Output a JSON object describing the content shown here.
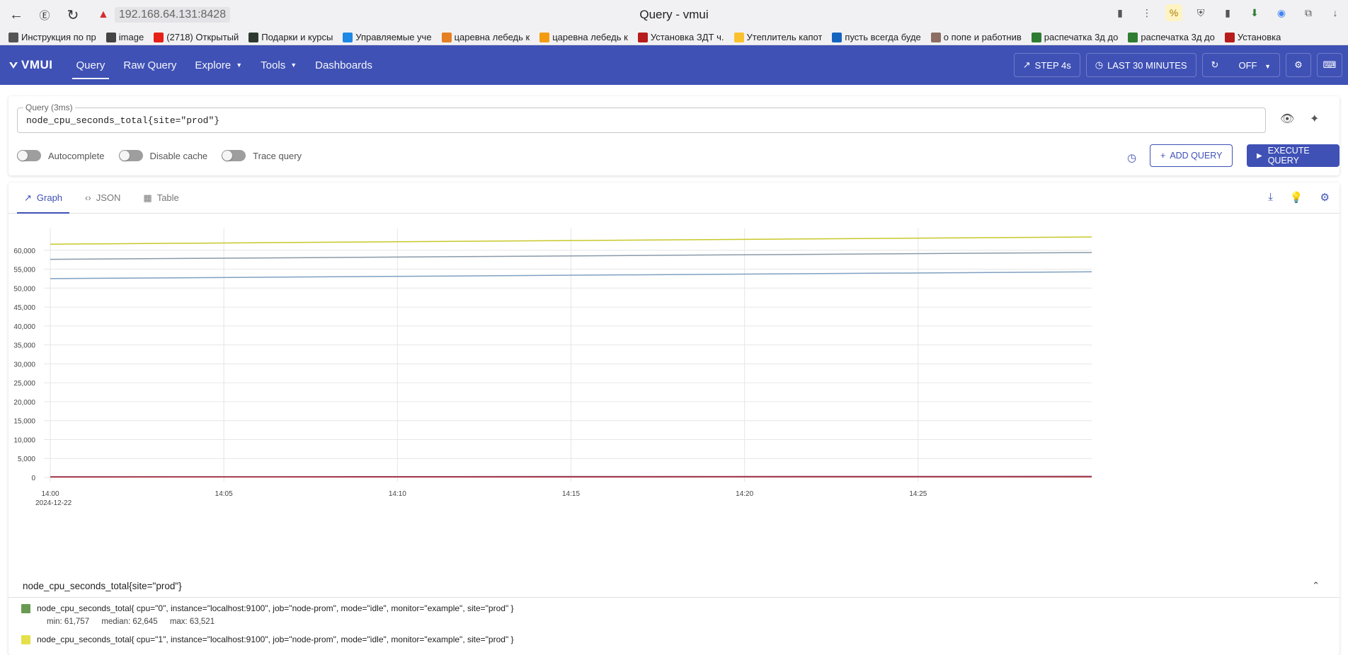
{
  "browser": {
    "url": "192.168.64.131:8428",
    "title": "Query - vmui",
    "bookmarks": [
      {
        "label": "Инструкция по пр",
        "color": "#555555"
      },
      {
        "label": "image",
        "color": "#444444"
      },
      {
        "label": "(2718) Открытый",
        "color": "#e62117"
      },
      {
        "label": "Подарки и курсы",
        "color": "#2e3a2f"
      },
      {
        "label": "Управляемые уче",
        "color": "#1e88e5"
      },
      {
        "label": "царевна лебедь к",
        "color": "#e67e22"
      },
      {
        "label": "царевна лебедь к",
        "color": "#f39c12"
      },
      {
        "label": "Установка ЗДТ ч.",
        "color": "#b71c1c"
      },
      {
        "label": "Утеплитель капот",
        "color": "#fbc02d"
      },
      {
        "label": "пусть всегда буде",
        "color": "#1565c0"
      },
      {
        "label": "о попе и работнив",
        "color": "#8d6e63"
      },
      {
        "label": "распечатка 3д до",
        "color": "#2e7d32"
      },
      {
        "label": "распечатка 3д до",
        "color": "#2e7d32"
      },
      {
        "label": "Установка",
        "color": "#b71c1c"
      }
    ]
  },
  "header": {
    "logo": "VMUI",
    "menu": [
      {
        "label": "Query",
        "active": true,
        "dropdown": false
      },
      {
        "label": "Raw Query",
        "active": false,
        "dropdown": false
      },
      {
        "label": "Explore",
        "active": false,
        "dropdown": true
      },
      {
        "label": "Tools",
        "active": false,
        "dropdown": true
      },
      {
        "label": "Dashboards",
        "active": false,
        "dropdown": false
      }
    ],
    "step_label": "STEP 4s",
    "time_range_label": "LAST 30 MINUTES",
    "refresh_label": "OFF"
  },
  "query": {
    "label": "Query (3ms)",
    "value": "node_cpu_seconds_total{site=\"prod\"}",
    "toggles": [
      "Autocomplete",
      "Disable cache",
      "Trace query"
    ],
    "add_label": "ADD QUERY",
    "execute_label": "EXECUTE QUERY"
  },
  "tabs": [
    {
      "label": "Graph",
      "icon": "chart-line-icon",
      "active": true
    },
    {
      "label": "JSON",
      "icon": "code-icon",
      "active": false
    },
    {
      "label": "Table",
      "icon": "table-icon",
      "active": false
    }
  ],
  "chart_data": {
    "type": "line",
    "title": "",
    "xlabel": "",
    "ylabel": "",
    "x_ticks": [
      "14:00",
      "14:05",
      "14:10",
      "14:15",
      "14:20",
      "14:25"
    ],
    "x_date_label": "2024-12-22",
    "x_range": [
      "14:00",
      "14:30"
    ],
    "ylim": [
      0,
      65000
    ],
    "y_ticks": [
      0,
      5000,
      10000,
      15000,
      20000,
      25000,
      30000,
      35000,
      40000,
      45000,
      50000,
      55000,
      60000
    ],
    "y_tick_labels": [
      "0",
      "5,000",
      "10,000",
      "15,000",
      "20,000",
      "25,000",
      "30,000",
      "35,000",
      "40,000",
      "45,000",
      "50,000",
      "55,000",
      "60,000"
    ],
    "grid": true,
    "series": [
      {
        "color": "#c8c82a",
        "x": [
          "14:00",
          "14:30"
        ],
        "values": [
          61600,
          63500
        ]
      },
      {
        "color": "#8a9aa8",
        "x": [
          "14:00",
          "14:30"
        ],
        "values": [
          57600,
          59400
        ]
      },
      {
        "color": "#7fa0c0",
        "x": [
          "14:00",
          "14:30"
        ],
        "values": [
          52500,
          54300
        ]
      },
      {
        "color": "#8b4a8b",
        "x": [
          "14:00",
          "14:30"
        ],
        "values": [
          200,
          300
        ]
      },
      {
        "color": "#b03a3a",
        "x": [
          "14:00",
          "14:30"
        ],
        "values": [
          100,
          150
        ]
      }
    ]
  },
  "legend": {
    "group_title": "node_cpu_seconds_total{site=\"prod\"}",
    "items": [
      {
        "color": "#6a9a52",
        "label": "node_cpu_seconds_total{ cpu=\"0\", instance=\"localhost:9100\", job=\"node-prom\", mode=\"idle\", monitor=\"example\", site=\"prod\" }",
        "stats": "min: 61,757",
        "median": "median: 62,645",
        "max": "max: 63,521"
      },
      {
        "color": "#e5e04a",
        "label": "node_cpu_seconds_total{ cpu=\"1\", instance=\"localhost:9100\", job=\"node-prom\", mode=\"idle\", monitor=\"example\", site=\"prod\" }"
      }
    ]
  }
}
